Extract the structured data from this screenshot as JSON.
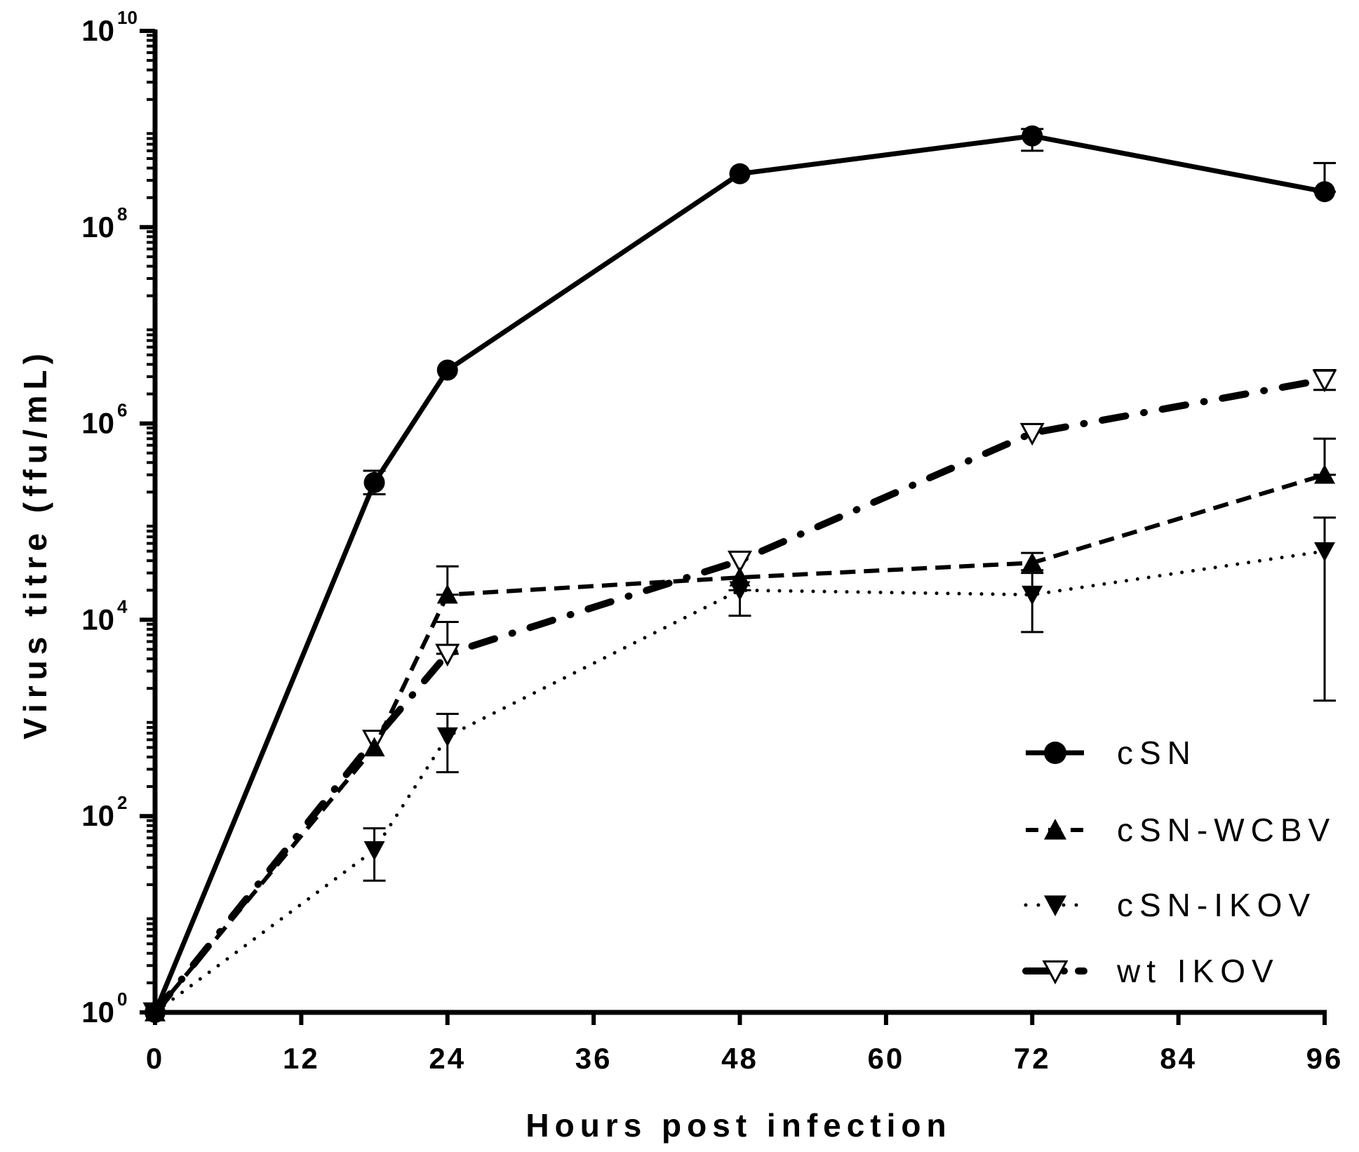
{
  "chart_data": {
    "type": "line",
    "title": "",
    "xlabel": "Hours post infection",
    "ylabel": "Virus titre (ffu/mL)",
    "x_ticks": [
      0,
      12,
      24,
      36,
      48,
      60,
      72,
      84,
      96
    ],
    "xlim": [
      0,
      96
    ],
    "y_scale": "log",
    "ylim": [
      1,
      10000000000
    ],
    "y_ticks": [
      {
        "base": "10",
        "exp": "0",
        "value": 1
      },
      {
        "base": "10",
        "exp": "2",
        "value": 100
      },
      {
        "base": "10",
        "exp": "4",
        "value": 10000
      },
      {
        "base": "10",
        "exp": "6",
        "value": 1000000
      },
      {
        "base": "10",
        "exp": "8",
        "value": 100000000
      },
      {
        "base": "10",
        "exp": "10",
        "value": 10000000000
      }
    ],
    "legend_position": "bottom-right",
    "series": [
      {
        "name": "cSN",
        "marker": "circle",
        "line": "solid",
        "points": [
          {
            "x": 0,
            "y": 1
          },
          {
            "x": 18,
            "y": 250000,
            "err": [
              190000,
              330000
            ]
          },
          {
            "x": 24,
            "y": 3500000
          },
          {
            "x": 48,
            "y": 350000000
          },
          {
            "x": 72,
            "y": 850000000,
            "err": [
              600000000,
              1000000000
            ]
          },
          {
            "x": 96,
            "y": 230000000,
            "err": [
              230000000,
              450000000
            ]
          }
        ]
      },
      {
        "name": "cSN-WCBV",
        "marker": "triangle-up",
        "line": "dashed",
        "points": [
          {
            "x": 0,
            "y": 1
          },
          {
            "x": 18,
            "y": 500
          },
          {
            "x": 24,
            "y": 18000,
            "err": [
              18000,
              35000
            ]
          },
          {
            "x": 48,
            "y": 27000
          },
          {
            "x": 72,
            "y": 38000,
            "err": [
              30000,
              48000
            ]
          },
          {
            "x": 96,
            "y": 300000,
            "err": [
              300000,
              700000
            ]
          }
        ]
      },
      {
        "name": "cSN-IKOV",
        "marker": "triangle-down",
        "line": "dotted",
        "points": [
          {
            "x": 0,
            "y": 1
          },
          {
            "x": 18,
            "y": 45,
            "err": [
              22,
              75
            ]
          },
          {
            "x": 24,
            "y": 650,
            "err": [
              280,
              1100
            ]
          },
          {
            "x": 48,
            "y": 20000,
            "err": [
              11000,
              20000
            ]
          },
          {
            "x": 72,
            "y": 18000,
            "err": [
              7500,
              32000
            ]
          },
          {
            "x": 96,
            "y": 50000,
            "err": [
              1500,
              110000
            ]
          }
        ]
      },
      {
        "name": "wt IKOV",
        "marker": "triangle-down-open",
        "line": "dash-dot",
        "points": [
          {
            "x": 0,
            "y": 1
          },
          {
            "x": 18,
            "y": 600
          },
          {
            "x": 24,
            "y": 4500,
            "err": [
              4500,
              9500
            ]
          },
          {
            "x": 48,
            "y": 40000
          },
          {
            "x": 72,
            "y": 800000
          },
          {
            "x": 96,
            "y": 2800000,
            "err": [
              2200000,
              3500000
            ]
          }
        ]
      }
    ]
  }
}
